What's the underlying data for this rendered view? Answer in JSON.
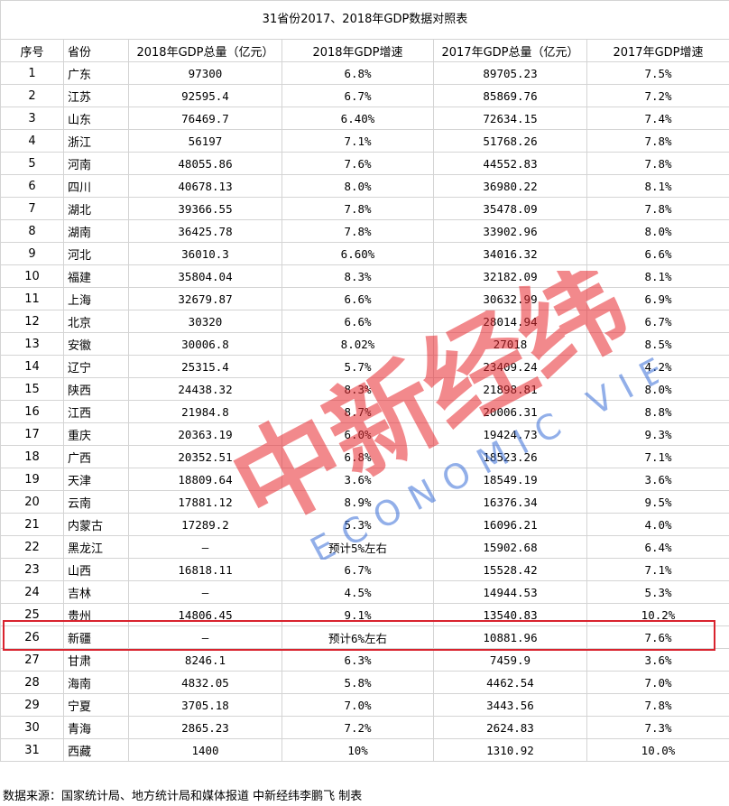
{
  "title": "31省份2017、2018年GDP数据对照表",
  "headers": [
    "序号",
    "省份",
    "2018年GDP总量（亿元）",
    "2018年GDP增速",
    "2017年GDP总量（亿元）",
    "2017年GDP增速"
  ],
  "rows": [
    [
      "1",
      "广东",
      "97300",
      "6.8%",
      "89705.23",
      "7.5%"
    ],
    [
      "2",
      "江苏",
      "92595.4",
      "6.7%",
      "85869.76",
      "7.2%"
    ],
    [
      "3",
      "山东",
      "76469.7",
      "6.40%",
      "72634.15",
      "7.4%"
    ],
    [
      "4",
      "浙江",
      "56197",
      "7.1%",
      "51768.26",
      "7.8%"
    ],
    [
      "5",
      "河南",
      "48055.86",
      "7.6%",
      "44552.83",
      "7.8%"
    ],
    [
      "6",
      "四川",
      "40678.13",
      "8.0%",
      "36980.22",
      "8.1%"
    ],
    [
      "7",
      "湖北",
      "39366.55",
      "7.8%",
      "35478.09",
      "7.8%"
    ],
    [
      "8",
      "湖南",
      "36425.78",
      "7.8%",
      "33902.96",
      "8.0%"
    ],
    [
      "9",
      "河北",
      "36010.3",
      "6.60%",
      "34016.32",
      "6.6%"
    ],
    [
      "10",
      "福建",
      "35804.04",
      "8.3%",
      "32182.09",
      "8.1%"
    ],
    [
      "11",
      "上海",
      "32679.87",
      "6.6%",
      "30632.99",
      "6.9%"
    ],
    [
      "12",
      "北京",
      "30320",
      "6.6%",
      "28014.94",
      "6.7%"
    ],
    [
      "13",
      "安徽",
      "30006.8",
      "8.02%",
      "27018",
      "8.5%"
    ],
    [
      "14",
      "辽宁",
      "25315.4",
      "5.7%",
      "23409.24",
      "4.2%"
    ],
    [
      "15",
      "陕西",
      "24438.32",
      "8.3%",
      "21898.81",
      "8.0%"
    ],
    [
      "16",
      "江西",
      "21984.8",
      "8.7%",
      "20006.31",
      "8.8%"
    ],
    [
      "17",
      "重庆",
      "20363.19",
      "6.0%",
      "19424.73",
      "9.3%"
    ],
    [
      "18",
      "广西",
      "20352.51",
      "6.8%",
      "18523.26",
      "7.1%"
    ],
    [
      "19",
      "天津",
      "18809.64",
      "3.6%",
      "18549.19",
      "3.6%"
    ],
    [
      "20",
      "云南",
      "17881.12",
      "8.9%",
      "16376.34",
      "9.5%"
    ],
    [
      "21",
      "内蒙古",
      "17289.2",
      "5.3%",
      "16096.21",
      "4.0%"
    ],
    [
      "22",
      "黑龙江",
      "—",
      "预计5%左右",
      "15902.68",
      "6.4%"
    ],
    [
      "23",
      "山西",
      "16818.11",
      "6.7%",
      "15528.42",
      "7.1%"
    ],
    [
      "24",
      "吉林",
      "—",
      "4.5%",
      "14944.53",
      "5.3%"
    ],
    [
      "25",
      "贵州",
      "14806.45",
      "9.1%",
      "13540.83",
      "10.2%"
    ],
    [
      "26",
      "新疆",
      "—",
      "预计6%左右",
      "10881.96",
      "7.6%"
    ],
    [
      "27",
      "甘肃",
      "8246.1",
      "6.3%",
      "7459.9",
      "3.6%"
    ],
    [
      "28",
      "海南",
      "4832.05",
      "5.8%",
      "4462.54",
      "7.0%"
    ],
    [
      "29",
      "宁夏",
      "3705.18",
      "7.0%",
      "3443.56",
      "7.8%"
    ],
    [
      "30",
      "青海",
      "2865.23",
      "7.2%",
      "2624.83",
      "7.3%"
    ],
    [
      "31",
      "西藏",
      "1400",
      "10%",
      "1310.92",
      "10.0%"
    ]
  ],
  "highlight_row_index": 24,
  "source": "数据来源：国家统计局、地方统计局和媒体报道 中新经纬李鹏飞 制表",
  "watermark": {
    "logo_text": "中新经纬",
    "sub_text": "ECONOMIC VIEW",
    "color_red": "#e8292f",
    "color_blue": "#3a6fd8"
  },
  "highlight_color": "#d9232e"
}
